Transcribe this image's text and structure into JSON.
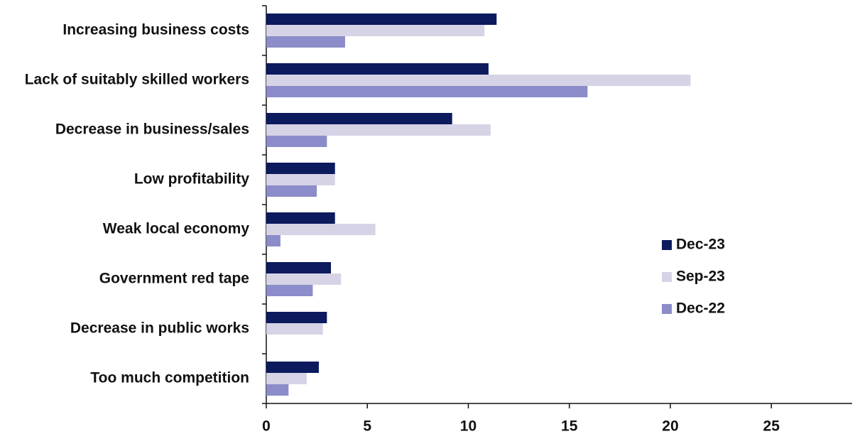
{
  "chart_data": {
    "type": "hbar",
    "categories": [
      "Increasing business costs",
      "Lack of suitably skilled workers",
      "Decrease in business/sales",
      "Low profitability",
      "Weak local economy",
      "Government red tape",
      "Decrease in public works",
      "Too much competition"
    ],
    "series": [
      {
        "name": "Dec-23",
        "color": "#0c1a5e",
        "values": [
          11.4,
          11.0,
          9.2,
          3.4,
          3.4,
          3.2,
          3.0,
          2.6
        ]
      },
      {
        "name": "Sep-23",
        "color": "#d6d3e6",
        "values": [
          10.8,
          21.0,
          11.1,
          3.4,
          5.4,
          3.7,
          2.8,
          2.0
        ]
      },
      {
        "name": "Dec-22",
        "color": "#8b8cc9",
        "values": [
          3.9,
          15.9,
          3.0,
          2.5,
          0.7,
          2.3,
          null,
          1.1
        ]
      }
    ],
    "xlim": [
      0,
      29
    ],
    "xticks": [
      0,
      5,
      10,
      15,
      20,
      25
    ],
    "legend": "right"
  }
}
